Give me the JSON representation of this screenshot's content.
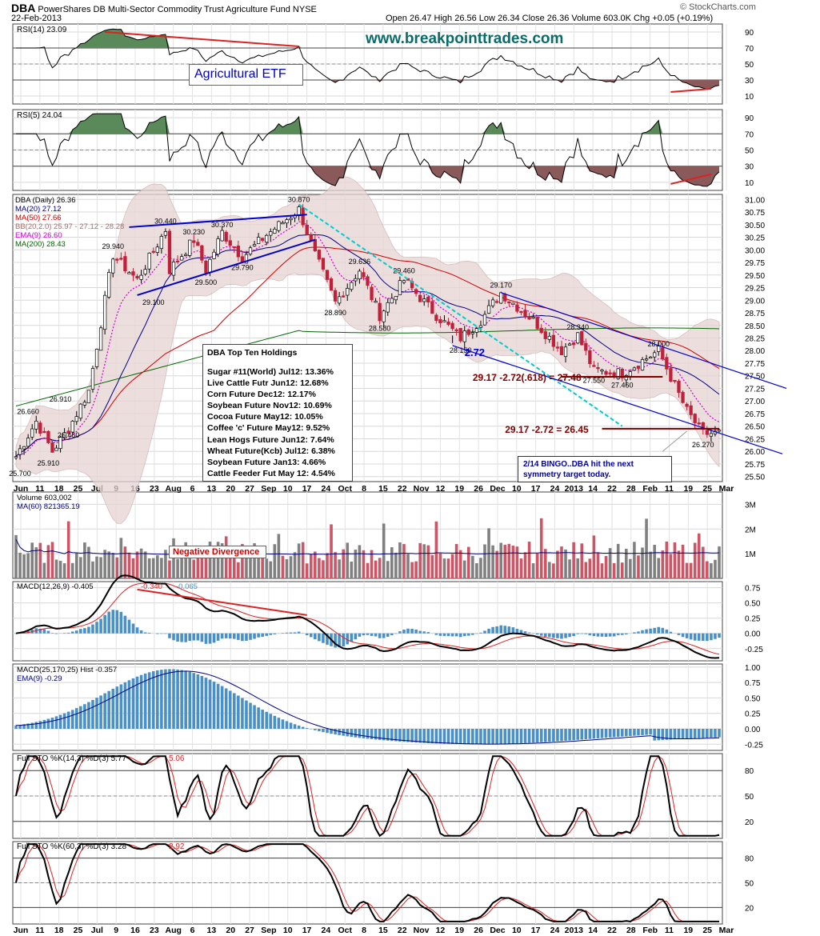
{
  "header": {
    "symbol": "DBA",
    "name": "PowerShares DB Multi-Sector Commodity Trust Agriculture Fund",
    "exchange": "NYSE",
    "date": "22-Feb-2013",
    "ohlc": "Open 26.47  High 26.56  Low 26.34  Close 26.36  Volume 603.0K  Chg +0.05 (+0.19%)",
    "credit": "© StockCharts.com"
  },
  "annotations": {
    "url": "www.breakpointtrades.com",
    "etf_label": "Agricultural ETF",
    "neg_divergence": "Negative Divergence",
    "target1": "29.17 -2.72(.618) = 27.48",
    "target2": "29.17 -2.72 = 26.45",
    "range_label": "2.72",
    "bingo_line1": "2/14 BINGO..DBA hit the next",
    "bingo_line2": "symmetry target today."
  },
  "holdings": {
    "title": "DBA Top Ten Holdings",
    "items": [
      "Sugar #11(World) Jul12: 13.36%",
      "Live Cattle Futr Jun12: 12.68%",
      "Corn Future Dec12: 12.17%",
      "Soybean Future Nov12: 10.69%",
      "Cocoa Future May12: 10.05%",
      "Coffee 'c' Future May12: 9.52%",
      "Lean Hogs Future Jun12: 7.64%",
      "Wheat Future(Kcb) Jul12: 6.38%",
      "Soybean Future Jan13: 4.66%",
      "Cattle Feeder Fut May 12: 4.54%"
    ]
  },
  "colors": {
    "up": "#ffffff",
    "down": "#c0203a",
    "ma20": "#000080",
    "ma50": "#cc0000",
    "bb_fill": "#e8d4d4",
    "ema9": "#cc00cc",
    "ma200": "#006400",
    "vol_up": "#808080",
    "vol_down": "#cc5566",
    "hist": "#4a90c8",
    "trend_blue": "#0000cc",
    "trend_cyan": "#00cccc",
    "annot_red": "#800000"
  },
  "chart_data": {
    "type": "stock-multi-panel",
    "x_labels": [
      "Jun",
      "11",
      "18",
      "25",
      "Jul",
      "9",
      "16",
      "23",
      "Aug",
      "6",
      "13",
      "20",
      "27",
      "Sep",
      "10",
      "17",
      "24",
      "Oct",
      "8",
      "15",
      "22",
      "Nov",
      "12",
      "19",
      "26",
      "Dec",
      "10",
      "17",
      "24",
      "2013",
      "14",
      "22",
      "28",
      "Feb",
      "11",
      "19",
      "25",
      "Mar"
    ],
    "panels": [
      {
        "id": "rsi14",
        "label": "RSI(14) 23.09",
        "ticks": [
          90,
          70,
          50,
          30,
          10
        ],
        "ylim": [
          0,
          100
        ]
      },
      {
        "id": "rsi5",
        "label": "RSI(5) 24.04",
        "ticks": [
          90,
          70,
          50,
          30,
          10
        ],
        "ylim": [
          0,
          100
        ]
      },
      {
        "id": "price",
        "labels": [
          "DBA (Daily) 26.36",
          "MA(20) 27.12",
          "MA(50) 27.66",
          "BB(20,2.0) 25.97 - 27.12 - 28.28",
          "EMA(9) 26.60",
          "MA(200) 28.43"
        ],
        "ticks": [
          31.0,
          30.75,
          30.5,
          30.25,
          30.0,
          29.75,
          29.5,
          29.25,
          29.0,
          28.75,
          28.5,
          28.25,
          28.0,
          27.75,
          27.5,
          27.25,
          27.0,
          26.75,
          26.5,
          26.25,
          26.0,
          25.75,
          25.5
        ],
        "ylim": [
          25.4,
          31.1
        ],
        "price_labels": [
          {
            "text": "25.700",
            "x": 1,
            "y": 25.7
          },
          {
            "text": "26.660",
            "x": 3,
            "y": 26.66
          },
          {
            "text": "25.910",
            "x": 8,
            "y": 25.91
          },
          {
            "text": "26.460",
            "x": 13,
            "y": 26.46
          },
          {
            "text": "26.910",
            "x": 11,
            "y": 26.91
          },
          {
            "text": "29.940",
            "x": 24,
            "y": 29.94
          },
          {
            "text": "30.440",
            "x": 37,
            "y": 30.44
          },
          {
            "text": "29.100",
            "x": 34,
            "y": 29.1
          },
          {
            "text": "30.230",
            "x": 44,
            "y": 30.23
          },
          {
            "text": "30.370",
            "x": 51,
            "y": 30.37
          },
          {
            "text": "29.500",
            "x": 47,
            "y": 29.5
          },
          {
            "text": "29.790",
            "x": 56,
            "y": 29.79
          },
          {
            "text": "30.870",
            "x": 70,
            "y": 30.87
          },
          {
            "text": "29.636",
            "x": 85,
            "y": 29.636
          },
          {
            "text": "28.890",
            "x": 79,
            "y": 28.89
          },
          {
            "text": "29.460",
            "x": 96,
            "y": 29.46
          },
          {
            "text": "28.580",
            "x": 90,
            "y": 28.58
          },
          {
            "text": "28.150",
            "x": 110,
            "y": 28.15
          },
          {
            "text": "29.170",
            "x": 120,
            "y": 29.17
          },
          {
            "text": "28.340",
            "x": 139,
            "y": 28.34
          },
          {
            "text": "27.550",
            "x": 143,
            "y": 27.55
          },
          {
            "text": "28.000",
            "x": 159,
            "y": 28.0
          },
          {
            "text": "27.460",
            "x": 150,
            "y": 27.46
          },
          {
            "text": "26.270",
            "x": 170,
            "y": 26.27
          }
        ]
      },
      {
        "id": "volume",
        "labels": [
          "Volume 603,002",
          "MA(60) 821365.19"
        ],
        "ticks": [
          "3M",
          "2M",
          "1M"
        ],
        "ylim": [
          0,
          3500000
        ]
      },
      {
        "id": "macd1",
        "labels": [
          "MACD(12,26,9) -0.405",
          "-0.340",
          "-0.065"
        ],
        "ticks": [
          0.75,
          0.5,
          0.25,
          0.0,
          -0.25
        ],
        "ylim": [
          -0.45,
          0.85
        ]
      },
      {
        "id": "macd2",
        "labels": [
          "MACD(25,170,25) Hist -0.357",
          "EMA(9) -0.29"
        ],
        "ticks": [
          1.0,
          0.75,
          0.5,
          0.25,
          0.0,
          -0.25
        ],
        "ylim": [
          -0.35,
          1.05
        ]
      },
      {
        "id": "sto1",
        "labels": [
          "Full STO %K(14,3) %D(3) 5.77",
          "5.06"
        ],
        "ticks": [
          80,
          50,
          20
        ],
        "ylim": [
          0,
          100
        ]
      },
      {
        "id": "sto2",
        "labels": [
          "Full STO %K(60,3) %D(3) 3.28",
          "2.92"
        ],
        "ticks": [
          80,
          50,
          20
        ],
        "ylim": [
          0,
          100
        ]
      }
    ]
  }
}
